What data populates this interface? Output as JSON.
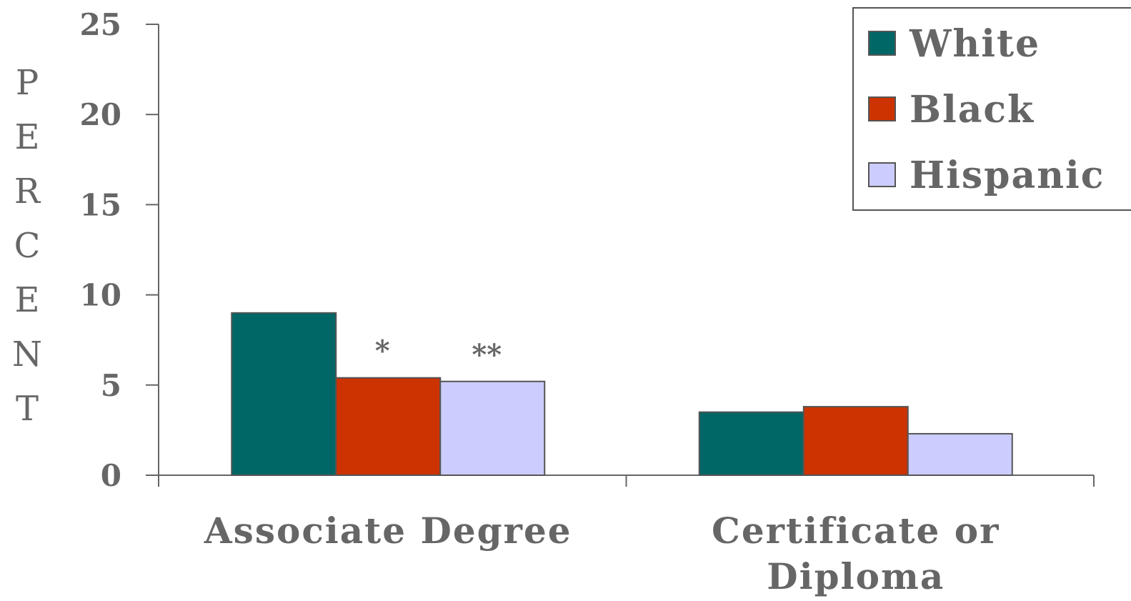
{
  "chart_data": {
    "type": "bar",
    "ylabel": "PERCENT",
    "ylim": [
      0,
      25
    ],
    "yticks": [
      "0",
      "5",
      "10",
      "15",
      "20",
      "25"
    ],
    "categories": [
      "Associate Degree",
      "Certificate or Diploma"
    ],
    "series": [
      {
        "name": "White",
        "values": [
          9.0,
          3.5
        ],
        "color": "#006666"
      },
      {
        "name": "Black",
        "values": [
          5.4,
          3.8
        ],
        "color": "#cc3300"
      },
      {
        "name": "Hispanic",
        "values": [
          5.2,
          2.3
        ],
        "color": "#ccccff"
      }
    ],
    "annotations": [
      {
        "text": "*",
        "category": 0,
        "series": 1
      },
      {
        "text": "**",
        "category": 0,
        "series": 2
      }
    ],
    "legend": "top-right",
    "grid": false
  }
}
